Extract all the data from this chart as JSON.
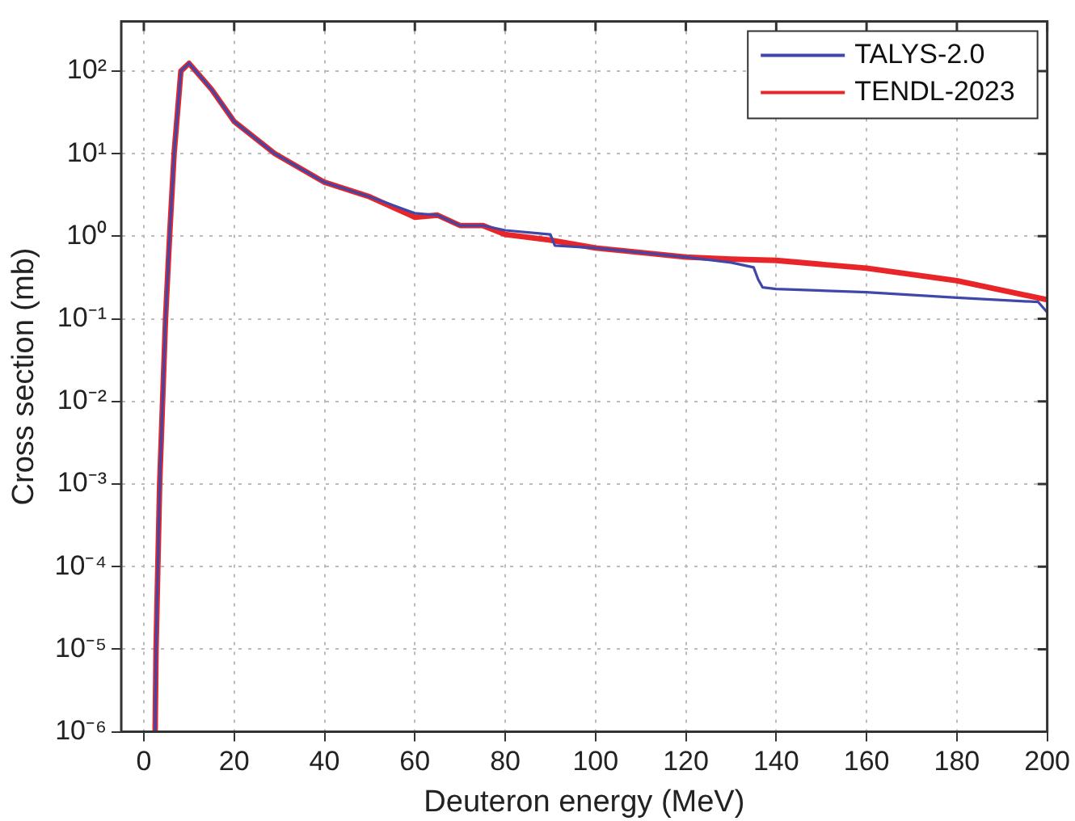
{
  "chart_data": {
    "type": "line",
    "xlabel": "Deuteron energy (MeV)",
    "ylabel": "Cross section (mb)",
    "log": "y",
    "grid": true,
    "legend": "top right",
    "marker": "none",
    "line_style": "solid",
    "xlim": [
      -5,
      200
    ],
    "xticks": [
      0,
      20,
      40,
      60,
      80,
      100,
      120,
      140,
      160,
      180,
      200
    ],
    "ylim": [
      1e-06,
      400
    ],
    "yticks": [
      {
        "value": 1e-06,
        "label": "10⁻⁶"
      },
      {
        "value": 1e-05,
        "label": "10⁻⁵"
      },
      {
        "value": 0.0001,
        "label": "10⁻⁴"
      },
      {
        "value": 0.001,
        "label": "10⁻³"
      },
      {
        "value": 0.01,
        "label": "10⁻²"
      },
      {
        "value": 0.1,
        "label": "10⁻¹"
      },
      {
        "value": 1,
        "label": "10⁰"
      },
      {
        "value": 10,
        "label": "10¹"
      },
      {
        "value": 100,
        "label": "10²"
      }
    ],
    "series": [
      {
        "name": "TALYS-2.0",
        "color": "#3f48a8",
        "x": [
          2.5,
          2.7,
          3.5,
          4.8,
          5.7,
          6.7,
          8.2,
          10,
          15,
          20,
          29,
          40,
          50,
          60,
          65,
          70,
          75,
          80,
          90,
          91,
          100,
          120,
          130,
          135,
          136,
          137,
          140,
          160,
          180,
          198,
          200
        ],
        "values": [
          1e-06,
          1e-05,
          0.001,
          0.1,
          1,
          10,
          100,
          124,
          60,
          24.5,
          10,
          4.5,
          3.0,
          1.9,
          1.8,
          1.35,
          1.35,
          1.18,
          1.05,
          0.77,
          0.72,
          0.56,
          0.48,
          0.42,
          0.3,
          0.24,
          0.23,
          0.21,
          0.18,
          0.16,
          0.12
        ]
      },
      {
        "name": "TENDL-2023",
        "color": "#e8262a",
        "x": [
          2.5,
          2.7,
          3.5,
          4.8,
          5.7,
          6.7,
          8.2,
          10,
          15,
          20,
          29,
          40,
          50,
          60,
          65,
          70,
          75,
          80,
          90,
          100,
          120,
          130,
          140,
          160,
          180,
          200
        ],
        "values": [
          1e-06,
          1e-05,
          0.001,
          0.1,
          1,
          10,
          100,
          124,
          60,
          24.5,
          10,
          4.5,
          3.0,
          1.7,
          1.8,
          1.35,
          1.35,
          1.05,
          0.9,
          0.72,
          0.56,
          0.53,
          0.51,
          0.41,
          0.29,
          0.17
        ]
      }
    ]
  }
}
